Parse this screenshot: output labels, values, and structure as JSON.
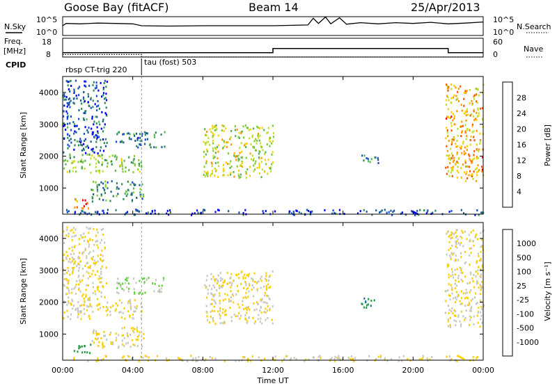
{
  "header": {
    "station": "Goose Bay (fitACF)",
    "beam": "Beam 14",
    "date": "25/Apr/2013"
  },
  "left_labels": {
    "nsky": "N.Sky",
    "freq": "Freq.",
    "mhz": "[MHz]",
    "cpid": "CPID"
  },
  "right_labels": {
    "nsearch": "N.Search",
    "nave": "Nave"
  },
  "noise_panel": {
    "left_ticks": [
      "10^5",
      "10^0"
    ],
    "right_ticks": [
      "10^5",
      "10^0"
    ]
  },
  "freq_panel": {
    "left_ticks": [
      "18",
      "8"
    ],
    "right_ticks": [
      "60",
      "0"
    ]
  },
  "cpid": {
    "mode1": "rbsp CT-trig 220",
    "mode2": "tau (fost) 503"
  },
  "xaxis": {
    "label": "Time UT",
    "ticks": [
      "00:00",
      "04:00",
      "08:00",
      "12:00",
      "16:00",
      "20:00",
      "00:00"
    ]
  },
  "power_panel": {
    "ylabel": "Slant Range [km]",
    "colorbar_label": "Power [dB]",
    "colorbar_ticks": [
      "28",
      "24",
      "20",
      "16",
      "12",
      "8",
      "4"
    ],
    "colors": [
      "#0000ff",
      "#1a4fd0",
      "#1f5f8f",
      "#2e8b57",
      "#59b359",
      "#7fcc33",
      "#bfe02e",
      "#ffd000",
      "#ff9900",
      "#ff5a00",
      "#ff0000"
    ]
  },
  "velocity_panel": {
    "ylabel": "Slant Range [km]",
    "colorbar_label": "Velocity [m s⁻¹]",
    "colorbar_ticks": [
      "1000",
      "500",
      "100",
      "25",
      "-25",
      "-100",
      "-500",
      "-1000"
    ],
    "colors": [
      "#1a3ccc",
      "#1d74a8",
      "#2e9a4a",
      "#5fd040",
      "#c8c8c0",
      "#ffd000",
      "#ff8c00",
      "#ff3300",
      "#ff0000"
    ]
  },
  "chart_data": {
    "type": "heatmap",
    "time_range_hours": [
      0,
      24
    ],
    "range_km": [
      180,
      4500
    ],
    "range_ticks_km": [
      1000,
      2000,
      3000,
      4000
    ],
    "noise_profile": [
      [
        0,
        2.6
      ],
      [
        0.2,
        3.2
      ],
      [
        1,
        3.1
      ],
      [
        2,
        3.3
      ],
      [
        3,
        3.2
      ],
      [
        4,
        3.1
      ],
      [
        4.5,
        2.6
      ],
      [
        6,
        2.5
      ],
      [
        8,
        2.6
      ],
      [
        10,
        2.6
      ],
      [
        12,
        2.6
      ],
      [
        14,
        2.8
      ],
      [
        14.3,
        4.6
      ],
      [
        14.6,
        3.2
      ],
      [
        15,
        4.9
      ],
      [
        15.3,
        3.1
      ],
      [
        15.8,
        4.7
      ],
      [
        16.2,
        3.0
      ],
      [
        17,
        3.4
      ],
      [
        18,
        3.1
      ],
      [
        19,
        3.4
      ],
      [
        20,
        3.2
      ],
      [
        21,
        3.5
      ],
      [
        22,
        3.1
      ],
      [
        23,
        3.3
      ],
      [
        24,
        3.6
      ]
    ],
    "freq_mhz": [
      [
        0,
        10.3
      ],
      [
        12,
        10.3
      ],
      [
        12,
        12.5
      ],
      [
        22,
        12.5
      ],
      [
        22,
        10.3
      ],
      [
        24,
        10.3
      ]
    ],
    "nave": [
      [
        0,
        8
      ],
      [
        4.5,
        8
      ],
      [
        4.5,
        0
      ],
      [
        24,
        0
      ]
    ],
    "cpid_change_hour": 4.5,
    "echo_regions": [
      {
        "t0": 0.0,
        "t1": 4.5,
        "r0": 1500,
        "r1": 2100,
        "power": 16,
        "velocity": -25
      },
      {
        "t0": 0.0,
        "t1": 2.5,
        "r0": 2100,
        "r1": 4400,
        "power": 8,
        "velocity": -25
      },
      {
        "t0": 0.6,
        "t1": 1.6,
        "r0": 380,
        "r1": 720,
        "power": 26,
        "velocity": 120
      },
      {
        "t0": 1.6,
        "t1": 4.6,
        "r0": 600,
        "r1": 1250,
        "power": 12,
        "velocity": -25
      },
      {
        "t0": 3.0,
        "t1": 5.8,
        "r0": 2300,
        "r1": 2800,
        "power": 10,
        "velocity": 25
      },
      {
        "t0": 8.0,
        "t1": 12.0,
        "r0": 1350,
        "r1": 3000,
        "power": 18,
        "velocity": -25
      },
      {
        "t0": 17.0,
        "t1": 18.0,
        "r0": 1800,
        "r1": 2150,
        "power": 10,
        "velocity": 500
      },
      {
        "t0": 21.8,
        "t1": 24.0,
        "r0": 1250,
        "r1": 4300,
        "power": 22,
        "velocity": -25
      },
      {
        "t0": 0.0,
        "t1": 24.0,
        "r0": 180,
        "r1": 350,
        "power": 6,
        "velocity": -25
      }
    ]
  }
}
